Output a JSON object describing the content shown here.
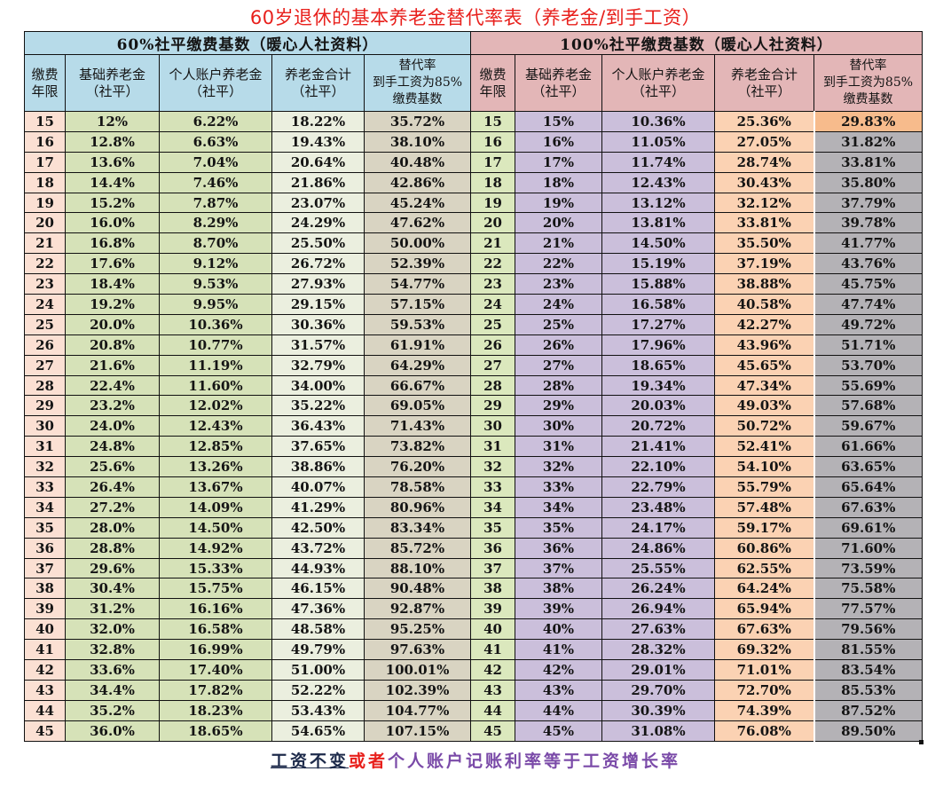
{
  "title": "60岁退休的基本养老金替代率表（养老金/到手工资）",
  "groups": {
    "left": {
      "label": "60%社平缴费基数（暖心人社资料）",
      "color": "#b7dbe9"
    },
    "right": {
      "label": "100%社平缴费基数（暖心人社资料）",
      "color": "#e3b6b7"
    }
  },
  "columns": {
    "year": {
      "line1": "缴费",
      "line2": "年限"
    },
    "base": {
      "line1": "基础养老金",
      "line2": "（社平）"
    },
    "personal": {
      "line1": "个人账户养老金",
      "line2": "（社平）"
    },
    "total": {
      "line1": "养老金合计",
      "line2": "（社平）"
    },
    "rate": {
      "line1": "替代率",
      "line2": "到手工资为85%",
      "line3": "缴费基数"
    }
  },
  "rows": [
    {
      "year": "15",
      "l_base": "12%",
      "l_pers": "6.22%",
      "l_total": "18.22%",
      "l_rate": "35.72%",
      "r_base": "15%",
      "r_pers": "10.36%",
      "r_total": "25.36%",
      "r_rate": "29.83%"
    },
    {
      "year": "16",
      "l_base": "12.8%",
      "l_pers": "6.63%",
      "l_total": "19.43%",
      "l_rate": "38.10%",
      "r_base": "16%",
      "r_pers": "11.05%",
      "r_total": "27.05%",
      "r_rate": "31.82%"
    },
    {
      "year": "17",
      "l_base": "13.6%",
      "l_pers": "7.04%",
      "l_total": "20.64%",
      "l_rate": "40.48%",
      "r_base": "17%",
      "r_pers": "11.74%",
      "r_total": "28.74%",
      "r_rate": "33.81%"
    },
    {
      "year": "18",
      "l_base": "14.4%",
      "l_pers": "7.46%",
      "l_total": "21.86%",
      "l_rate": "42.86%",
      "r_base": "18%",
      "r_pers": "12.43%",
      "r_total": "30.43%",
      "r_rate": "35.80%"
    },
    {
      "year": "19",
      "l_base": "15.2%",
      "l_pers": "7.87%",
      "l_total": "23.07%",
      "l_rate": "45.24%",
      "r_base": "19%",
      "r_pers": "13.12%",
      "r_total": "32.12%",
      "r_rate": "37.79%"
    },
    {
      "year": "20",
      "l_base": "16.0%",
      "l_pers": "8.29%",
      "l_total": "24.29%",
      "l_rate": "47.62%",
      "r_base": "20%",
      "r_pers": "13.81%",
      "r_total": "33.81%",
      "r_rate": "39.78%"
    },
    {
      "year": "21",
      "l_base": "16.8%",
      "l_pers": "8.70%",
      "l_total": "25.50%",
      "l_rate": "50.00%",
      "r_base": "21%",
      "r_pers": "14.50%",
      "r_total": "35.50%",
      "r_rate": "41.77%"
    },
    {
      "year": "22",
      "l_base": "17.6%",
      "l_pers": "9.12%",
      "l_total": "26.72%",
      "l_rate": "52.39%",
      "r_base": "22%",
      "r_pers": "15.19%",
      "r_total": "37.19%",
      "r_rate": "43.76%"
    },
    {
      "year": "23",
      "l_base": "18.4%",
      "l_pers": "9.53%",
      "l_total": "27.93%",
      "l_rate": "54.77%",
      "r_base": "23%",
      "r_pers": "15.88%",
      "r_total": "38.88%",
      "r_rate": "45.75%"
    },
    {
      "year": "24",
      "l_base": "19.2%",
      "l_pers": "9.95%",
      "l_total": "29.15%",
      "l_rate": "57.15%",
      "r_base": "24%",
      "r_pers": "16.58%",
      "r_total": "40.58%",
      "r_rate": "47.74%"
    },
    {
      "year": "25",
      "l_base": "20.0%",
      "l_pers": "10.36%",
      "l_total": "30.36%",
      "l_rate": "59.53%",
      "r_base": "25%",
      "r_pers": "17.27%",
      "r_total": "42.27%",
      "r_rate": "49.72%"
    },
    {
      "year": "26",
      "l_base": "20.8%",
      "l_pers": "10.77%",
      "l_total": "31.57%",
      "l_rate": "61.91%",
      "r_base": "26%",
      "r_pers": "17.96%",
      "r_total": "43.96%",
      "r_rate": "51.71%"
    },
    {
      "year": "27",
      "l_base": "21.6%",
      "l_pers": "11.19%",
      "l_total": "32.79%",
      "l_rate": "64.29%",
      "r_base": "27%",
      "r_pers": "18.65%",
      "r_total": "45.65%",
      "r_rate": "53.70%"
    },
    {
      "year": "28",
      "l_base": "22.4%",
      "l_pers": "11.60%",
      "l_total": "34.00%",
      "l_rate": "66.67%",
      "r_base": "28%",
      "r_pers": "19.34%",
      "r_total": "47.34%",
      "r_rate": "55.69%"
    },
    {
      "year": "29",
      "l_base": "23.2%",
      "l_pers": "12.02%",
      "l_total": "35.22%",
      "l_rate": "69.05%",
      "r_base": "29%",
      "r_pers": "20.03%",
      "r_total": "49.03%",
      "r_rate": "57.68%"
    },
    {
      "year": "30",
      "l_base": "24.0%",
      "l_pers": "12.43%",
      "l_total": "36.43%",
      "l_rate": "71.43%",
      "r_base": "30%",
      "r_pers": "20.72%",
      "r_total": "50.72%",
      "r_rate": "59.67%"
    },
    {
      "year": "31",
      "l_base": "24.8%",
      "l_pers": "12.85%",
      "l_total": "37.65%",
      "l_rate": "73.82%",
      "r_base": "31%",
      "r_pers": "21.41%",
      "r_total": "52.41%",
      "r_rate": "61.66%"
    },
    {
      "year": "32",
      "l_base": "25.6%",
      "l_pers": "13.26%",
      "l_total": "38.86%",
      "l_rate": "76.20%",
      "r_base": "32%",
      "r_pers": "22.10%",
      "r_total": "54.10%",
      "r_rate": "63.65%"
    },
    {
      "year": "33",
      "l_base": "26.4%",
      "l_pers": "13.67%",
      "l_total": "40.07%",
      "l_rate": "78.58%",
      "r_base": "33%",
      "r_pers": "22.79%",
      "r_total": "55.79%",
      "r_rate": "65.64%"
    },
    {
      "year": "34",
      "l_base": "27.2%",
      "l_pers": "14.09%",
      "l_total": "41.29%",
      "l_rate": "80.96%",
      "r_base": "34%",
      "r_pers": "23.48%",
      "r_total": "57.48%",
      "r_rate": "67.63%"
    },
    {
      "year": "35",
      "l_base": "28.0%",
      "l_pers": "14.50%",
      "l_total": "42.50%",
      "l_rate": "83.34%",
      "r_base": "35%",
      "r_pers": "24.17%",
      "r_total": "59.17%",
      "r_rate": "69.61%"
    },
    {
      "year": "36",
      "l_base": "28.8%",
      "l_pers": "14.92%",
      "l_total": "43.72%",
      "l_rate": "85.72%",
      "r_base": "36%",
      "r_pers": "24.86%",
      "r_total": "60.86%",
      "r_rate": "71.60%"
    },
    {
      "year": "37",
      "l_base": "29.6%",
      "l_pers": "15.33%",
      "l_total": "44.93%",
      "l_rate": "88.10%",
      "r_base": "37%",
      "r_pers": "25.55%",
      "r_total": "62.55%",
      "r_rate": "73.59%"
    },
    {
      "year": "38",
      "l_base": "30.4%",
      "l_pers": "15.75%",
      "l_total": "46.15%",
      "l_rate": "90.48%",
      "r_base": "38%",
      "r_pers": "26.24%",
      "r_total": "64.24%",
      "r_rate": "75.58%"
    },
    {
      "year": "39",
      "l_base": "31.2%",
      "l_pers": "16.16%",
      "l_total": "47.36%",
      "l_rate": "92.87%",
      "r_base": "39%",
      "r_pers": "26.94%",
      "r_total": "65.94%",
      "r_rate": "77.57%"
    },
    {
      "year": "40",
      "l_base": "32.0%",
      "l_pers": "16.58%",
      "l_total": "48.58%",
      "l_rate": "95.25%",
      "r_base": "40%",
      "r_pers": "27.63%",
      "r_total": "67.63%",
      "r_rate": "79.56%"
    },
    {
      "year": "41",
      "l_base": "32.8%",
      "l_pers": "16.99%",
      "l_total": "49.79%",
      "l_rate": "97.63%",
      "r_base": "41%",
      "r_pers": "28.32%",
      "r_total": "69.32%",
      "r_rate": "81.55%"
    },
    {
      "year": "42",
      "l_base": "33.6%",
      "l_pers": "17.40%",
      "l_total": "51.00%",
      "l_rate": "100.01%",
      "r_base": "42%",
      "r_pers": "29.01%",
      "r_total": "71.01%",
      "r_rate": "83.54%"
    },
    {
      "year": "43",
      "l_base": "34.4%",
      "l_pers": "17.82%",
      "l_total": "52.22%",
      "l_rate": "102.39%",
      "r_base": "43%",
      "r_pers": "29.70%",
      "r_total": "72.70%",
      "r_rate": "85.53%"
    },
    {
      "year": "44",
      "l_base": "35.2%",
      "l_pers": "18.23%",
      "l_total": "53.43%",
      "l_rate": "104.77%",
      "r_base": "44%",
      "r_pers": "30.39%",
      "r_total": "74.39%",
      "r_rate": "87.52%"
    },
    {
      "year": "45",
      "l_base": "36.0%",
      "l_pers": "18.65%",
      "l_total": "54.65%",
      "l_rate": "107.15%",
      "r_base": "45%",
      "r_pers": "31.08%",
      "r_total": "76.08%",
      "r_rate": "89.50%"
    }
  ],
  "footer": {
    "part1": "工资不变",
    "part2": "或者",
    "part3": "个人账户记账利率等于工资增长率"
  },
  "colors": {
    "title": "#e8201c",
    "footer_part1": "#1d2a4a",
    "footer_part2": "#e8201c",
    "footer_part3": "#7a4aa8",
    "selected_cell": "#f7bb8c",
    "right_rate_column": "#b4b2b6"
  }
}
